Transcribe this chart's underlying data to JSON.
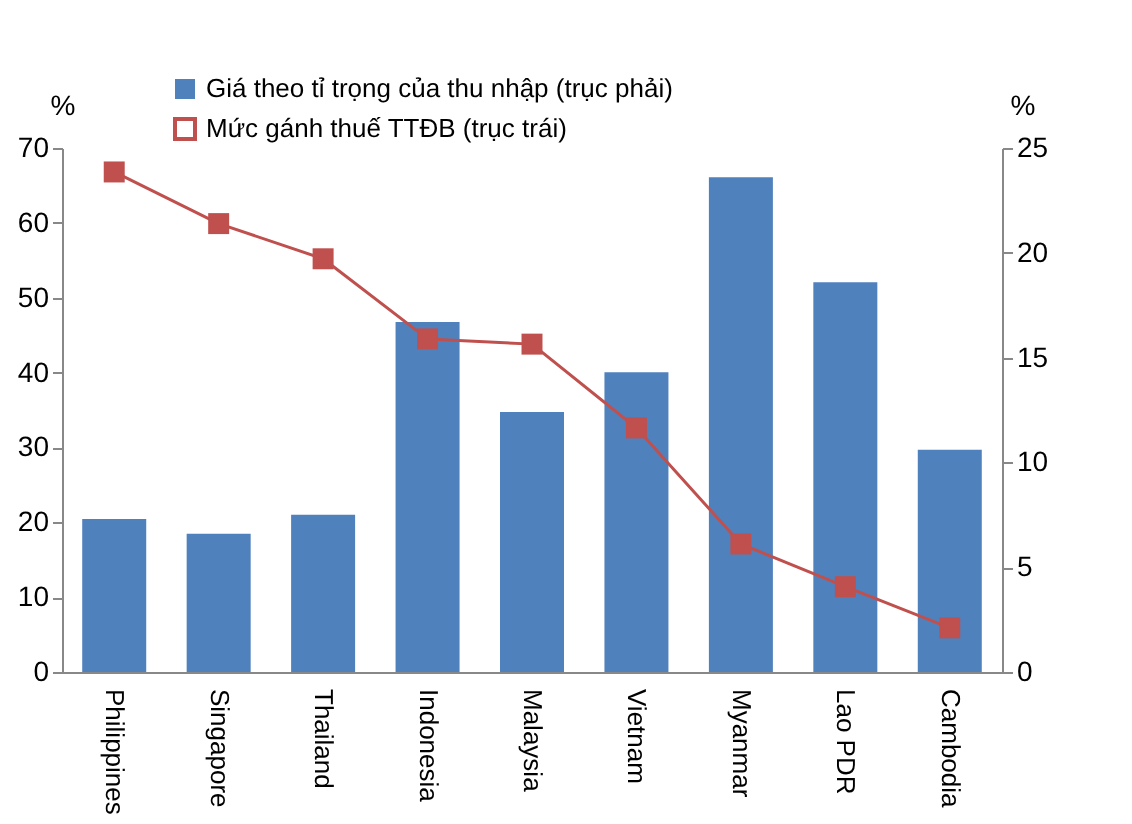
{
  "chart_data": {
    "type": "bar",
    "categories": [
      "Philippines",
      "Singapore",
      "Thailand",
      "Indonesia",
      "Malaysia",
      "Vietnam",
      "Myanmar",
      "Lao PDR",
      "Cambodia"
    ],
    "ylabel": "%",
    "y2label": "%",
    "ylim": [
      0,
      70
    ],
    "yticks": [
      0,
      10,
      20,
      30,
      40,
      50,
      60,
      70
    ],
    "y2lim": [
      0,
      25
    ],
    "y2ticks": [
      0,
      5,
      10,
      15,
      20,
      25
    ],
    "legend": "top",
    "grid": false,
    "series": [
      {
        "name": "Giá theo tỉ trọng của thu nhập (trục phải)",
        "axis": "y2",
        "color": "#4f81bd",
        "values": [
          7.3,
          6.6,
          7.5,
          16.7,
          12.4,
          14.3,
          23.6,
          18.6,
          10.6
        ]
      },
      {
        "name": "Mức gánh thuế TTĐB (trục trái)",
        "type": "line",
        "axis": "y",
        "color": "#c0504d",
        "marker": "square",
        "values": [
          66.8,
          59.9,
          55.2,
          44.5,
          43.8,
          32.6,
          17.1,
          11.4,
          5.9
        ]
      }
    ]
  }
}
